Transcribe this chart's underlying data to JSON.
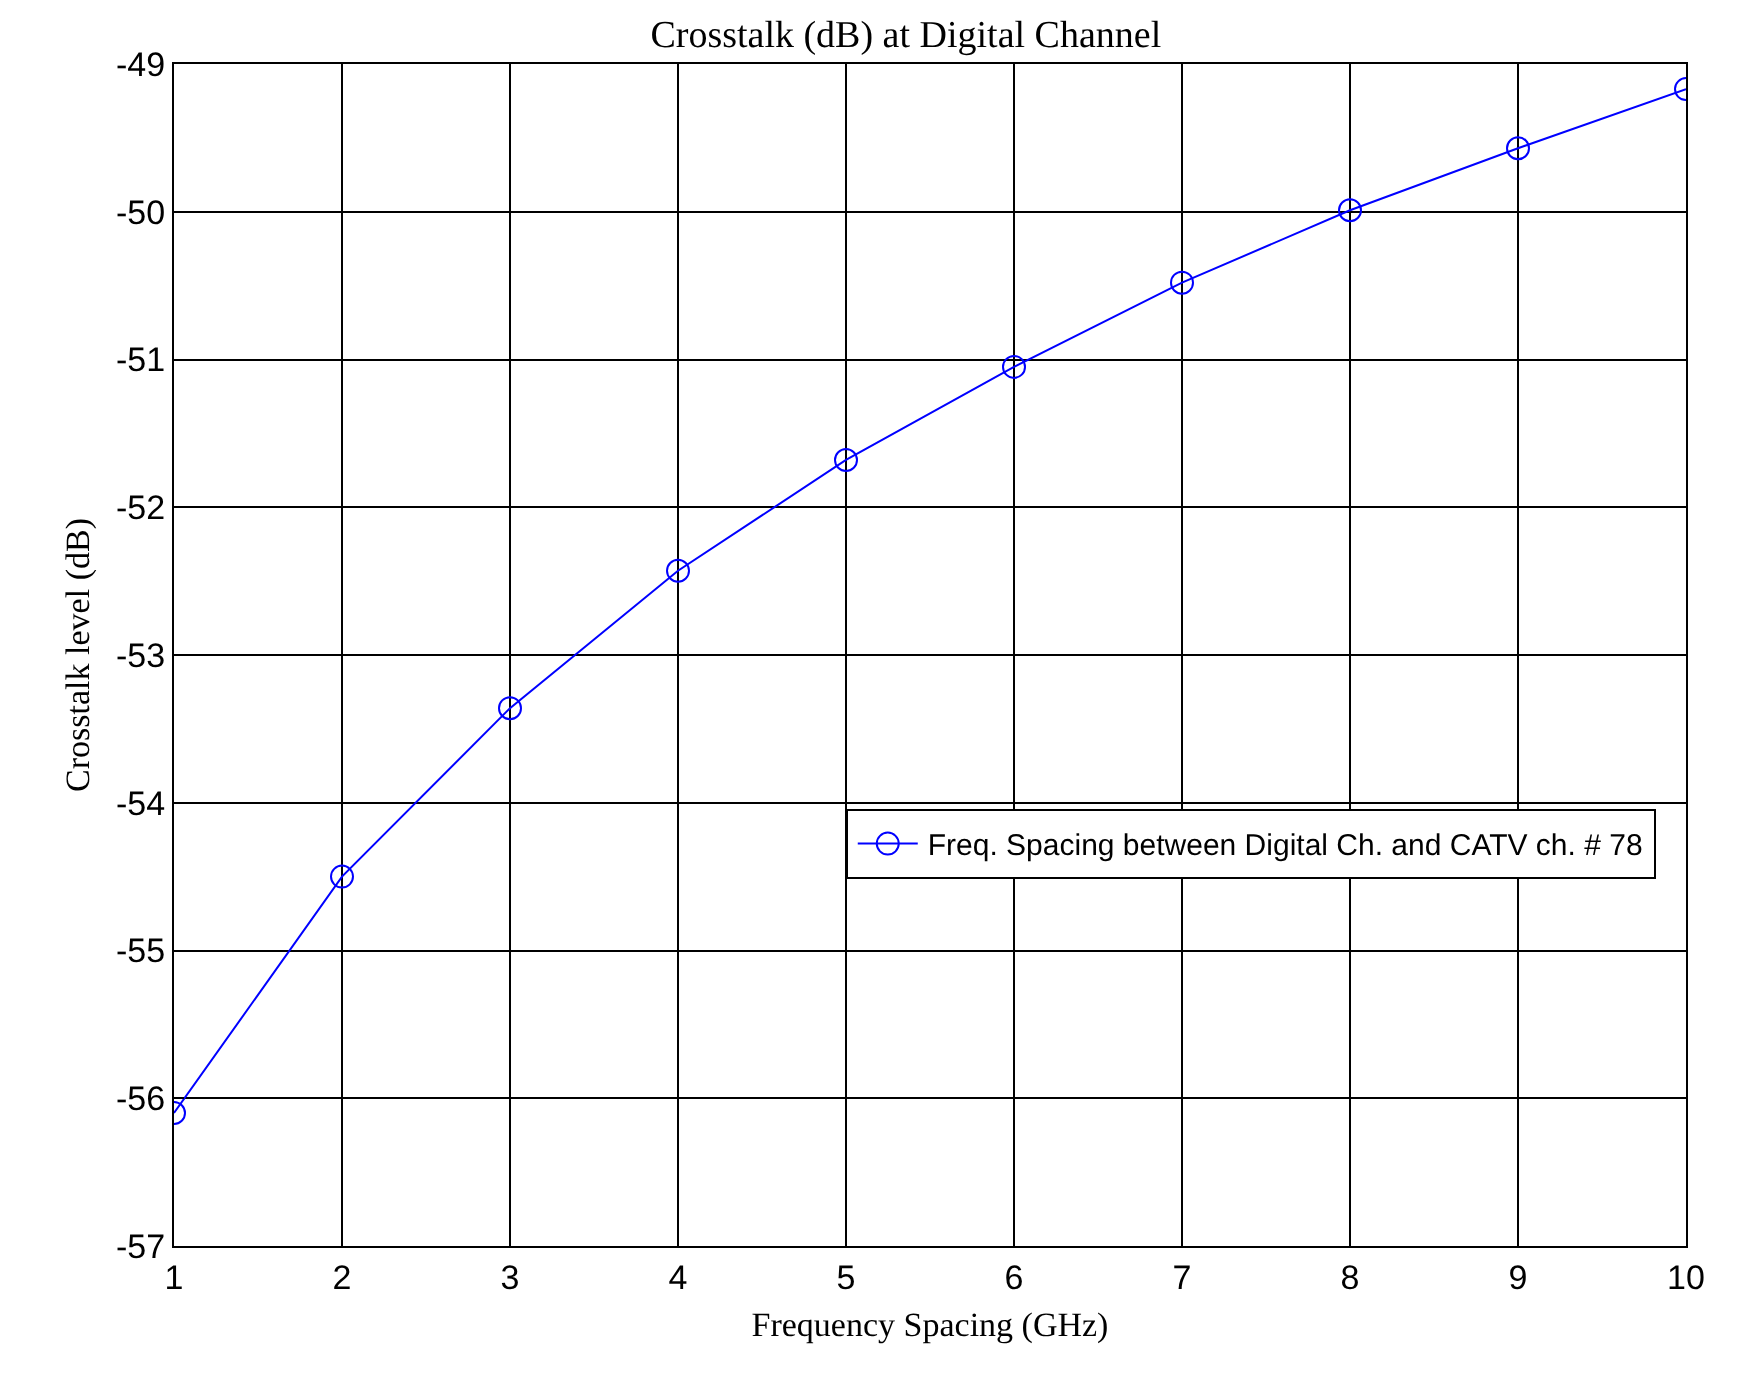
{
  "chart_data": {
    "type": "line",
    "title": "Crosstalk (dB) at Digital Channel",
    "xlabel": "Frequency Spacing (GHz)",
    "ylabel": "Crosstalk level (dB)",
    "x": [
      1,
      2,
      3,
      4,
      5,
      6,
      7,
      8,
      9,
      10
    ],
    "series": [
      {
        "name": "Freq. Spacing between Digital Ch. and CATV ch. # 78",
        "color": "#0000ff",
        "values": [
          -56.1,
          -54.5,
          -53.36,
          -52.43,
          -51.68,
          -51.05,
          -50.48,
          -49.99,
          -49.57,
          -49.17
        ]
      }
    ],
    "xlim": [
      1,
      10
    ],
    "xticks": [
      1,
      2,
      3,
      4,
      5,
      6,
      7,
      8,
      9,
      10
    ],
    "ylim": [
      -57,
      -49
    ],
    "yticks": [
      -57,
      -56,
      -55,
      -54,
      -53,
      -52,
      -51,
      -50,
      -49
    ],
    "grid": true,
    "legend": "center right",
    "marker": "circle",
    "line_style": "solid"
  }
}
